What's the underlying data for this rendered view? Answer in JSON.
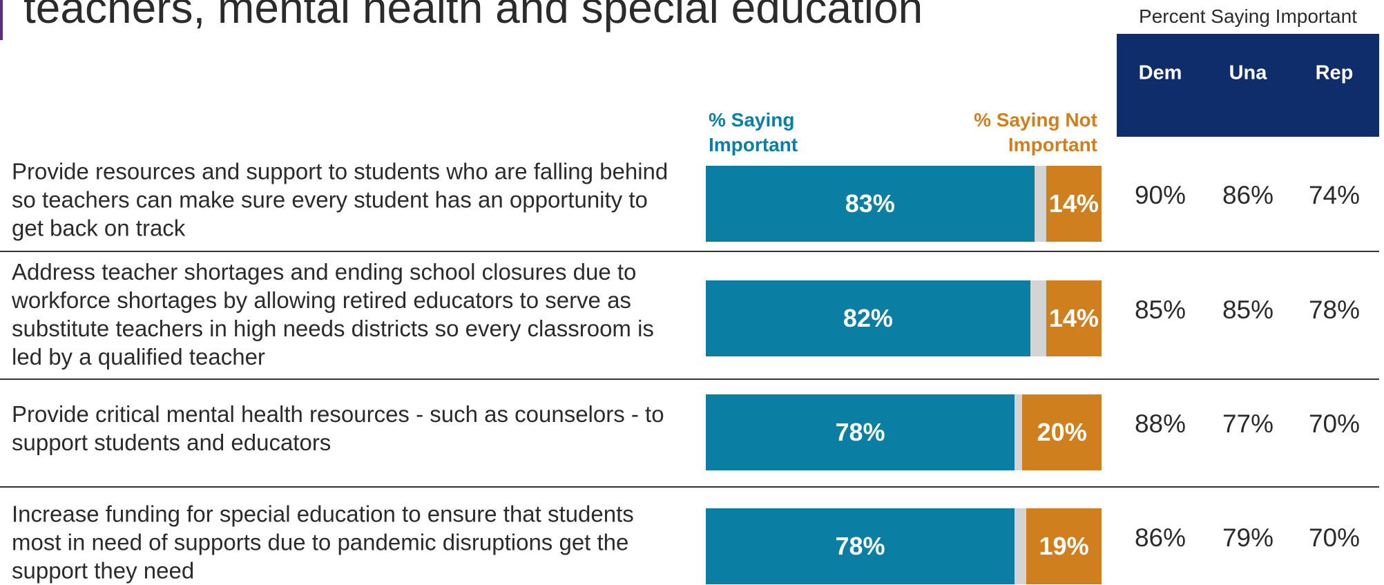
{
  "chart_data": {
    "type": "stacked-hbar",
    "title": "teachers, mental health and special education",
    "categories": [
      "Provide resources and support to students who are falling behind so teachers can make sure every student has an opportunity to get back on track",
      "Address teacher shortages and ending school closures due to workforce shortages by allowing retired educators to serve as substitute teachers in high needs districts so every classroom is led by a qualified teacher",
      "Provide critical mental health resources - such as counselors - to support students and educators",
      "Increase funding for special education to ensure that students most in need of supports due to pandemic disruptions get the support they need"
    ],
    "xlim": [
      0,
      100
    ],
    "series": [
      {
        "name": "% Saying Important",
        "color": "#0a7fa3",
        "values": [
          83,
          82,
          78,
          78
        ],
        "value_labels": [
          "83%",
          "82%",
          "78%",
          "78%"
        ]
      },
      {
        "name": "% Saying Not Important",
        "color": "#d07f1e",
        "values": [
          14,
          14,
          20,
          19
        ],
        "value_labels": [
          "14%",
          "14%",
          "20%",
          "19%"
        ]
      }
    ],
    "table": {
      "title": "Percent Saying Important",
      "columns": [
        "Dem",
        "Una",
        "Rep"
      ],
      "rows": [
        [
          "90%",
          "86%",
          "74%"
        ],
        [
          "85%",
          "85%",
          "78%"
        ],
        [
          "88%",
          "77%",
          "70%"
        ],
        [
          "86%",
          "79%",
          "70%"
        ]
      ]
    }
  }
}
